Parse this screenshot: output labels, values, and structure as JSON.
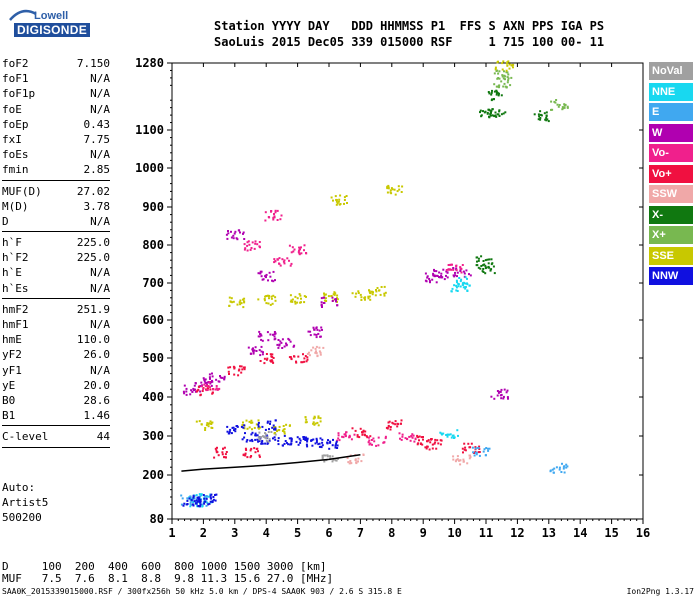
{
  "header": {
    "logo_text": "Lowell",
    "logo_sub": "DIGISONDE",
    "line1": "Station YYYY DAY   DDD HHMMSS P1  FFS S AXN PPS IGA PS",
    "line2": "SaoLuis 2015 Dec05 339 015000 RSF     1 715 100 00- 11"
  },
  "params_a": [
    {
      "label": "foF2",
      "value": "7.150"
    },
    {
      "label": "foF1",
      "value": "N/A"
    },
    {
      "label": "foF1p",
      "value": "N/A"
    },
    {
      "label": "foE",
      "value": "N/A"
    },
    {
      "label": "foEp",
      "value": "0.43"
    },
    {
      "label": "fxI",
      "value": "7.75"
    },
    {
      "label": "foEs",
      "value": "N/A"
    },
    {
      "label": "fmin",
      "value": "2.85"
    }
  ],
  "params_b": [
    {
      "label": "MUF(D)",
      "value": "27.02"
    },
    {
      "label": "M(D)",
      "value": "3.78"
    },
    {
      "label": "D",
      "value": "N/A"
    }
  ],
  "params_c": [
    {
      "label": "h`F",
      "value": "225.0"
    },
    {
      "label": "h`F2",
      "value": "225.0"
    },
    {
      "label": "h`E",
      "value": "N/A"
    },
    {
      "label": "h`Es",
      "value": "N/A"
    }
  ],
  "params_d": [
    {
      "label": "hmF2",
      "value": "251.9"
    },
    {
      "label": "hmF1",
      "value": "N/A"
    },
    {
      "label": "hmE",
      "value": "110.0"
    },
    {
      "label": "yF2",
      "value": "26.0"
    },
    {
      "label": "yF1",
      "value": "N/A"
    },
    {
      "label": "yE",
      "value": "20.0"
    },
    {
      "label": "B0",
      "value": "28.6"
    },
    {
      "label": "B1",
      "value": "1.46"
    }
  ],
  "clevel": {
    "label": "C-level",
    "value": "44"
  },
  "auto": {
    "line1": "Auto:",
    "line2": "Artist5",
    "line3": "500200"
  },
  "dmuf": {
    "d_row": "D     100  200  400  600  800 1000 1500 3000 [km]",
    "muf_row": "MUF   7.5  7.6  8.1  8.8  9.8 11.3 15.6 27.0 [MHz]"
  },
  "footer": {
    "text": "SAA0K_2015339015000.RSF / 300fx256h 50 kHz 5.0 km / DPS-4 SAA0K 903 / 2.6 S 315.8 E",
    "version": "Ion2Png 1.3.17"
  },
  "legend": [
    {
      "label": "NoVal",
      "color": "#a0a0a0"
    },
    {
      "label": "NNE",
      "color": "#18d8f0"
    },
    {
      "label": "E",
      "color": "#40a8f0"
    },
    {
      "label": "W",
      "color": "#b000b0"
    },
    {
      "label": "Vo-",
      "color": "#f0208c"
    },
    {
      "label": "Vo+",
      "color": "#f01040"
    },
    {
      "label": "SSW",
      "color": "#f0a8a8"
    },
    {
      "label": "X-",
      "color": "#107810"
    },
    {
      "label": "X+",
      "color": "#78b850"
    },
    {
      "label": "SSE",
      "color": "#c8c800"
    },
    {
      "label": "NNW",
      "color": "#1010e0"
    }
  ],
  "chart_data": {
    "type": "scatter",
    "title": "",
    "xlabel": "",
    "ylabel": "",
    "xlim": [
      1,
      16
    ],
    "ylim": [
      80,
      1280
    ],
    "x_ticks": [
      "1",
      "2",
      "3",
      "4",
      "5",
      "6",
      "7",
      "8",
      "9",
      "10",
      "11",
      "12",
      "13",
      "14",
      "15",
      "16"
    ],
    "y_ticks": [
      "80",
      "200",
      "300",
      "400",
      "500",
      "600",
      "700",
      "800",
      "900",
      "1000",
      "1100",
      "1280"
    ],
    "grid": false,
    "series": [
      {
        "name": "X-",
        "color": "#107810",
        "points": [
          [
            11.0,
            1150
          ],
          [
            11.2,
            1195
          ],
          [
            11.3,
            1150
          ],
          [
            12.8,
            1140
          ],
          [
            10.9,
            760
          ],
          [
            11.0,
            740
          ]
        ]
      },
      {
        "name": "X+",
        "color": "#78b850",
        "points": [
          [
            11.5,
            1230
          ],
          [
            11.5,
            1250
          ],
          [
            13.3,
            1170
          ]
        ]
      },
      {
        "name": "SSE",
        "color": "#c8c800",
        "points": [
          [
            11.55,
            1275
          ],
          [
            8.1,
            945
          ],
          [
            6.3,
            920
          ],
          [
            3.0,
            650
          ],
          [
            4.0,
            655
          ],
          [
            5.0,
            660
          ],
          [
            6.0,
            665
          ],
          [
            7.0,
            670
          ],
          [
            7.5,
            680
          ],
          [
            2.0,
            330
          ],
          [
            3.5,
            330
          ],
          [
            4.5,
            320
          ],
          [
            5.5,
            340
          ]
        ]
      },
      {
        "name": "W",
        "color": "#b000b0",
        "points": [
          [
            9.3,
            715
          ],
          [
            9.5,
            725
          ],
          [
            10.2,
            730
          ],
          [
            11.4,
            410
          ],
          [
            1.6,
            420
          ],
          [
            2.0,
            440
          ],
          [
            2.4,
            450
          ],
          [
            3.0,
            830
          ],
          [
            3.6,
            520
          ],
          [
            4.0,
            560
          ],
          [
            4.6,
            540
          ],
          [
            5.5,
            570
          ],
          [
            6.0,
            650
          ],
          [
            4.0,
            720
          ]
        ]
      },
      {
        "name": "Vo+",
        "color": "#f01040",
        "points": [
          [
            2.0,
            420
          ],
          [
            3.0,
            470
          ],
          [
            4.0,
            500
          ],
          [
            5.0,
            500
          ],
          [
            7.0,
            310
          ],
          [
            8.0,
            330
          ],
          [
            9.0,
            290
          ],
          [
            9.3,
            280
          ],
          [
            2.5,
            260
          ],
          [
            3.5,
            260
          ],
          [
            10.5,
            270
          ]
        ]
      },
      {
        "name": "Vo-",
        "color": "#f0208c",
        "points": [
          [
            3.5,
            800
          ],
          [
            4.2,
            880
          ],
          [
            4.5,
            760
          ],
          [
            5.0,
            790
          ],
          [
            2.2,
            430
          ],
          [
            6.5,
            300
          ],
          [
            7.5,
            290
          ],
          [
            8.5,
            300
          ],
          [
            10.0,
            740
          ]
        ]
      },
      {
        "name": "NNE",
        "color": "#18d8f0",
        "points": [
          [
            10.1,
            690
          ],
          [
            10.3,
            705
          ],
          [
            9.8,
            310
          ],
          [
            1.8,
            130
          ],
          [
            2.0,
            140
          ]
        ]
      },
      {
        "name": "E",
        "color": "#40a8f0",
        "points": [
          [
            13.3,
            220
          ],
          [
            10.8,
            260
          ],
          [
            1.5,
            135
          ],
          [
            1.8,
            132
          ]
        ]
      },
      {
        "name": "NNW",
        "color": "#1010e0",
        "points": [
          [
            3.5,
            300
          ],
          [
            4.0,
            295
          ],
          [
            4.5,
            290
          ],
          [
            5.0,
            290
          ],
          [
            5.5,
            285
          ],
          [
            6.0,
            282
          ],
          [
            1.6,
            130
          ],
          [
            1.9,
            135
          ],
          [
            2.1,
            137
          ],
          [
            3.0,
            320
          ],
          [
            4.0,
            330
          ]
        ]
      },
      {
        "name": "SSW",
        "color": "#f0a8a8",
        "points": [
          [
            6.8,
            245
          ],
          [
            5.5,
            520
          ],
          [
            10.2,
            240
          ]
        ]
      },
      {
        "name": "NoVal",
        "color": "#a0a0a0",
        "points": [
          [
            4.0,
            300
          ],
          [
            6.0,
            250
          ]
        ]
      }
    ],
    "profile_line": {
      "points": [
        [
          1.3,
          210
        ],
        [
          2.0,
          215
        ],
        [
          3.0,
          220
        ],
        [
          4.0,
          225
        ],
        [
          5.0,
          232
        ],
        [
          6.0,
          240
        ],
        [
          7.0,
          252
        ]
      ]
    }
  }
}
